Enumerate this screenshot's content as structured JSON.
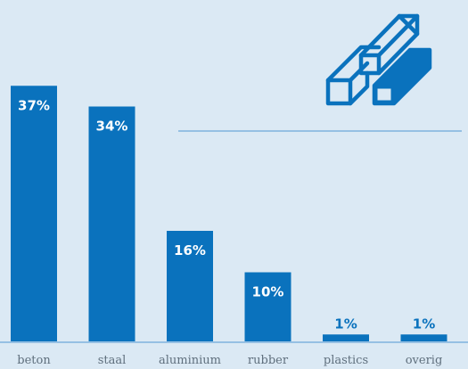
{
  "chart_data": {
    "type": "bar",
    "categories": [
      "beton",
      "staal",
      "aluminium",
      "rubber",
      "plastics",
      "overig"
    ],
    "values": [
      37,
      34,
      16,
      10,
      1,
      1
    ],
    "value_labels": [
      "37%",
      "34%",
      "16%",
      "10%",
      "1%",
      "1%"
    ],
    "ylim": [
      0,
      40
    ],
    "grid": false
  },
  "colors": {
    "bar": "#0a72bd",
    "background": "#dbe9f4",
    "axis": "#7fb3dd",
    "label": "#5f6f7d",
    "value_text": "#ffffff",
    "above_text": "#0a72bd"
  },
  "icon": {
    "name": "stacked-beams-icon"
  }
}
